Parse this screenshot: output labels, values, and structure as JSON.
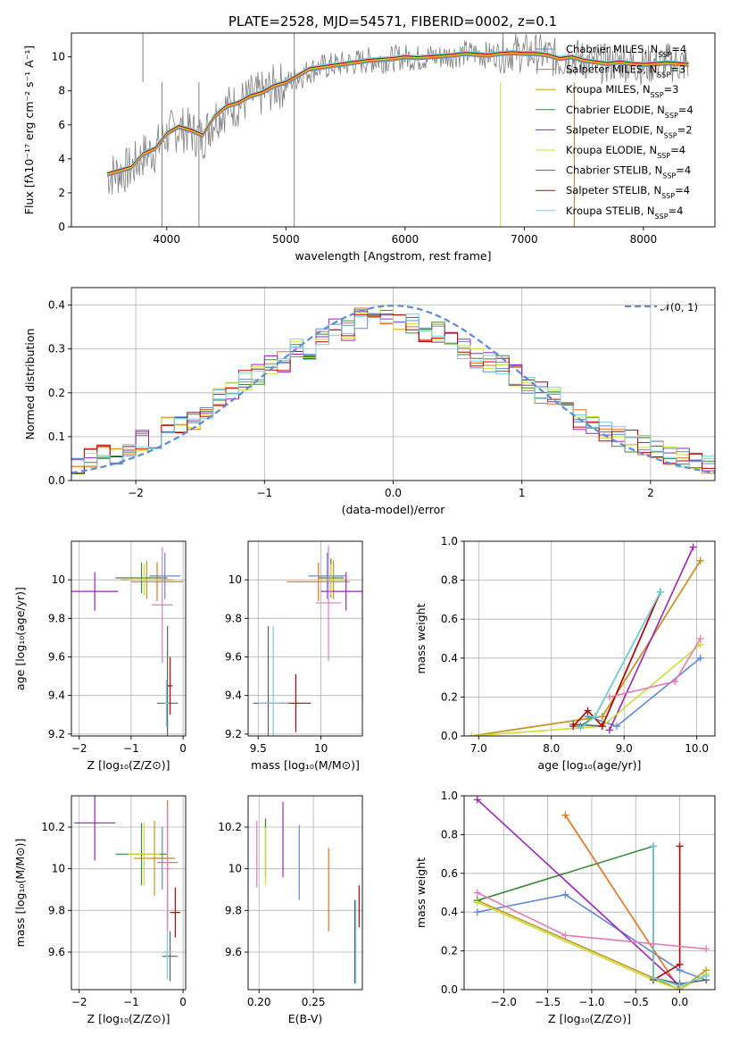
{
  "title": "PLATE=2528, MJD=54571, FIBERID=0002, z=0.1",
  "series_colors": [
    "#5e8ad8",
    "#e8701a",
    "#c8961e",
    "#3a8a3a",
    "#a020c0",
    "#c8e030",
    "#606060",
    "#c00000",
    "#70d0e0",
    "#e878b8"
  ],
  "chart_data": [
    {
      "type": "line",
      "panel": "spectrum",
      "xlabel": "wavelength [Angstrom, rest frame]",
      "ylabel": "Flux [fλ10⁻¹⁷ erg cm⁻² s⁻¹ A⁻¹]",
      "xlim": [
        3200,
        8600
      ],
      "ylim": [
        0,
        11.4
      ],
      "xticks": [
        4000,
        5000,
        6000,
        7000,
        8000
      ],
      "yticks": [
        0,
        2,
        4,
        6,
        8,
        10
      ],
      "grid": false,
      "legend_position": "top-right",
      "observed_spectrum": {
        "x": [
          3500,
          3600,
          3700,
          3800,
          3900,
          4000,
          4100,
          4200,
          4300,
          4400,
          4500,
          4600,
          4700,
          4800,
          4900,
          5000,
          5100,
          5200,
          5300,
          5400,
          5500,
          5600,
          5700,
          5800,
          5900,
          6000,
          6100,
          6200,
          6300,
          6400,
          6500,
          6600,
          6700,
          6800,
          6900,
          7000,
          7100,
          7200,
          7300,
          7400,
          7500,
          7600,
          7700,
          7800,
          7900,
          8000,
          8100,
          8200,
          8300,
          8380
        ],
        "y": [
          3.0,
          3.2,
          3.4,
          4.2,
          4.5,
          5.4,
          5.8,
          5.6,
          5.2,
          6.4,
          7.0,
          7.2,
          7.6,
          7.8,
          8.2,
          8.4,
          8.8,
          9.2,
          9.4,
          9.5,
          9.6,
          9.7,
          9.8,
          9.8,
          9.9,
          10.0,
          9.9,
          10.0,
          10.0,
          10.1,
          10.2,
          10.2,
          10.1,
          10.2,
          10.3,
          10.2,
          10.2,
          10.1,
          9.8,
          10.0,
          9.8,
          9.6,
          9.6,
          9.7,
          9.6,
          9.5,
          9.6,
          9.7,
          9.6,
          9.6
        ]
      },
      "model_spectrum": {
        "x": [
          3500,
          3600,
          3700,
          3800,
          3900,
          4000,
          4100,
          4200,
          4300,
          4400,
          4500,
          4600,
          4700,
          4800,
          4900,
          5000,
          5100,
          5200,
          5300,
          5400,
          5500,
          5600,
          5700,
          5800,
          5900,
          6000,
          6100,
          6200,
          6300,
          6400,
          6500,
          6600,
          6700,
          6800,
          6900,
          7000,
          7100,
          7200,
          7300,
          7400,
          7500,
          7600,
          7700,
          7800,
          7900,
          8000,
          8100,
          8200,
          8300,
          8380
        ],
        "y": [
          3.1,
          3.3,
          3.5,
          4.3,
          4.6,
          5.5,
          5.9,
          5.7,
          5.4,
          6.5,
          7.1,
          7.3,
          7.7,
          7.9,
          8.3,
          8.5,
          8.9,
          9.3,
          9.4,
          9.5,
          9.6,
          9.7,
          9.8,
          9.85,
          9.9,
          10.0,
          9.95,
          10.0,
          10.05,
          10.1,
          10.2,
          10.15,
          10.1,
          10.2,
          10.25,
          10.2,
          10.2,
          10.1,
          9.9,
          10.0,
          9.8,
          9.7,
          9.6,
          9.7,
          9.6,
          9.55,
          9.6,
          9.65,
          9.6,
          9.55
        ]
      },
      "legend": [
        "Chabrier MILES, N_SSP=4",
        "Salpeter MILES, N_SSP=3",
        "Kroupa MILES, N_SSP=3",
        "Chabrier ELODIE, N_SSP=4",
        "Salpeter ELODIE, N_SSP=2",
        "Kroupa ELODIE, N_SSP=4",
        "Chabrier STELIB, N_SSP=4",
        "Salpeter STELIB, N_SSP=4",
        "Kroupa STELIB, N_SSP=4"
      ]
    },
    {
      "type": "line",
      "panel": "residuals",
      "xlabel": "(data-model)/error",
      "ylabel": "Normed distribution",
      "xlim": [
        -2.5,
        2.5
      ],
      "ylim": [
        0,
        0.44
      ],
      "xticks": [
        -2,
        -1,
        0,
        1,
        2
      ],
      "yticks": [
        0.0,
        0.1,
        0.2,
        0.3,
        0.4
      ],
      "grid": true,
      "legend": [
        "𝒩(0, 1)"
      ],
      "legend_position": "top-right",
      "hist_bins": [
        -2.5,
        -2.4,
        -2.3,
        -2.2,
        -2.1,
        -2.0,
        -1.9,
        -1.8,
        -1.7,
        -1.6,
        -1.5,
        -1.4,
        -1.3,
        -1.2,
        -1.1,
        -1.0,
        -0.9,
        -0.8,
        -0.7,
        -0.6,
        -0.5,
        -0.4,
        -0.3,
        -0.2,
        -0.1,
        0.0,
        0.1,
        0.2,
        0.3,
        0.4,
        0.5,
        0.6,
        0.7,
        0.8,
        0.9,
        1.0,
        1.1,
        1.2,
        1.3,
        1.4,
        1.5,
        1.6,
        1.7,
        1.8,
        1.9,
        2.0,
        2.1,
        2.2,
        2.3,
        2.4,
        2.5
      ],
      "hist_values": [
        0.04,
        0.05,
        0.06,
        0.06,
        0.07,
        0.09,
        0.09,
        0.12,
        0.13,
        0.14,
        0.16,
        0.19,
        0.2,
        0.23,
        0.24,
        0.26,
        0.27,
        0.3,
        0.3,
        0.33,
        0.35,
        0.34,
        0.37,
        0.39,
        0.38,
        0.36,
        0.36,
        0.34,
        0.34,
        0.32,
        0.3,
        0.28,
        0.27,
        0.26,
        0.24,
        0.22,
        0.2,
        0.19,
        0.16,
        0.14,
        0.13,
        0.11,
        0.1,
        0.09,
        0.08,
        0.07,
        0.06,
        0.05,
        0.04,
        0.04
      ]
    },
    {
      "type": "scatter",
      "panel": "age-vs-Z",
      "xlabel": "Z [log₁₀(Z/Z⊙)]",
      "ylabel": "age  [log₁₀(age/yr)]",
      "xlim": [
        -2.15,
        0.05
      ],
      "ylim": [
        9.19,
        10.2
      ],
      "xticks": [
        -2,
        -1,
        0
      ],
      "yticks": [
        9.2,
        9.4,
        9.6,
        9.8,
        10.0
      ],
      "grid": true,
      "points": [
        {
          "x": -0.35,
          "y": 10.02,
          "xerr": 0.3,
          "yerr": 0.12
        },
        {
          "x": -0.5,
          "y": 9.99,
          "xerr": 0.5,
          "yerr": 0.1
        },
        {
          "x": -0.7,
          "y": 10.0,
          "xerr": 0.5,
          "yerr": 0.1
        },
        {
          "x": -0.8,
          "y": 10.01,
          "xerr": 0.5,
          "yerr": 0.08
        },
        {
          "x": -1.7,
          "y": 9.94,
          "xerr": 0.45,
          "yerr": 0.1
        },
        {
          "x": -0.75,
          "y": 10.0,
          "xerr": 0.3,
          "yerr": 0.08
        },
        {
          "x": -0.3,
          "y": 9.36,
          "xerr": 0.2,
          "yerr": 0.4
        },
        {
          "x": -0.25,
          "y": 9.45,
          "xerr": 0.05,
          "yerr": 0.15
        },
        {
          "x": -0.32,
          "y": 9.36,
          "xerr": 0.05,
          "yerr": 0.12
        },
        {
          "x": -0.4,
          "y": 9.87,
          "xerr": 0.2,
          "yerr": 0.3
        }
      ]
    },
    {
      "type": "scatter",
      "panel": "age-vs-mass",
      "xlabel": "mass [log₁₀(M/M⊙)]",
      "ylabel": "",
      "xlim": [
        9.42,
        10.33
      ],
      "ylim": [
        9.19,
        10.2
      ],
      "xticks": [
        9.5,
        10.0
      ],
      "yticks": [
        9.2,
        9.4,
        9.6,
        9.8,
        10.0
      ],
      "grid": true,
      "points": [
        {
          "x": 10.05,
          "y": 10.02,
          "xerr": 0.15,
          "yerr": 0.12
        },
        {
          "x": 9.98,
          "y": 9.99,
          "xerr": 0.25,
          "yerr": 0.1
        },
        {
          "x": 10.1,
          "y": 10.0,
          "xerr": 0.1,
          "yerr": 0.1
        },
        {
          "x": 10.08,
          "y": 10.01,
          "xerr": 0.1,
          "yerr": 0.1
        },
        {
          "x": 10.2,
          "y": 9.94,
          "xerr": 0.2,
          "yerr": 0.1
        },
        {
          "x": 10.08,
          "y": 10.0,
          "xerr": 0.1,
          "yerr": 0.08
        },
        {
          "x": 9.58,
          "y": 9.36,
          "xerr": 0.12,
          "yerr": 0.4
        },
        {
          "x": 9.8,
          "y": 9.36,
          "xerr": 0.12,
          "yerr": 0.15
        },
        {
          "x": 9.62,
          "y": 9.36,
          "xerr": 0.12,
          "yerr": 0.4
        },
        {
          "x": 10.06,
          "y": 9.88,
          "xerr": 0.1,
          "yerr": 0.3
        }
      ]
    },
    {
      "type": "line",
      "panel": "mass-weight-vs-age",
      "xlabel": "age  [log₁₀(age/yr)]",
      "ylabel": "mass weight",
      "xlim": [
        6.8,
        10.25
      ],
      "ylim": [
        0,
        1.0
      ],
      "xticks": [
        7,
        8,
        9,
        10
      ],
      "yticks": [
        0.0,
        0.2,
        0.4,
        0.6,
        0.8,
        1.0
      ],
      "grid": true,
      "series": [
        {
          "x": [
            8.5,
            8.9,
            10.05
          ],
          "y": [
            0.1,
            0.05,
            0.4
          ]
        },
        {
          "x": [
            6.9,
            8.7,
            10.05
          ],
          "y": [
            0.0,
            0.1,
            0.9
          ]
        },
        {
          "x": [
            6.9,
            8.7,
            10.05
          ],
          "y": [
            0.0,
            0.1,
            0.9
          ]
        },
        {
          "x": [
            8.4,
            8.6,
            9.5
          ],
          "y": [
            0.05,
            0.1,
            0.74
          ]
        },
        {
          "x": [
            8.8,
            9.95
          ],
          "y": [
            0.03,
            0.97
          ]
        },
        {
          "x": [
            6.9,
            8.7,
            10.05
          ],
          "y": [
            0.0,
            0.05,
            0.47
          ]
        },
        {
          "x": [
            8.3,
            8.7,
            9.5
          ],
          "y": [
            0.06,
            0.05,
            0.74
          ]
        },
        {
          "x": [
            8.3,
            8.5,
            8.7,
            9.5
          ],
          "y": [
            0.05,
            0.13,
            0.05,
            0.74
          ]
        },
        {
          "x": [
            8.4,
            8.6,
            9.5
          ],
          "y": [
            0.04,
            0.1,
            0.74
          ]
        },
        {
          "x": [
            8.8,
            9.7,
            10.05
          ],
          "y": [
            0.2,
            0.28,
            0.5
          ]
        }
      ]
    },
    {
      "type": "scatter",
      "panel": "mass-vs-Z",
      "xlabel": "Z [log₁₀(Z/Z⊙)]",
      "ylabel": "mass [log₁₀(M/M⊙)]",
      "xlim": [
        -2.15,
        0.05
      ],
      "ylim": [
        9.42,
        10.35
      ],
      "xticks": [
        -2,
        -1,
        0
      ],
      "yticks": [
        9.6,
        9.8,
        10.0,
        10.2
      ],
      "grid": true,
      "points": [
        {
          "x": -0.4,
          "y": 10.05,
          "xerr": 0.2,
          "yerr": 0.15
        },
        {
          "x": -0.3,
          "y": 10.03,
          "xerr": 0.2,
          "yerr": 0.3
        },
        {
          "x": -0.55,
          "y": 10.05,
          "xerr": 0.4,
          "yerr": 0.18
        },
        {
          "x": -0.8,
          "y": 10.07,
          "xerr": 0.5,
          "yerr": 0.15
        },
        {
          "x": -1.7,
          "y": 10.22,
          "xerr": 0.4,
          "yerr": 0.18
        },
        {
          "x": -0.75,
          "y": 10.07,
          "xerr": 0.3,
          "yerr": 0.15
        },
        {
          "x": -0.25,
          "y": 9.58,
          "xerr": 0.15,
          "yerr": 0.12
        },
        {
          "x": -0.15,
          "y": 9.79,
          "xerr": 0.1,
          "yerr": 0.12
        },
        {
          "x": -0.3,
          "y": 9.6,
          "xerr": 0.1,
          "yerr": 0.13
        },
        {
          "x": -0.3,
          "y": 10.0,
          "xerr": 0.05,
          "yerr": 0.3
        }
      ]
    },
    {
      "type": "scatter",
      "panel": "mass-vs-EBV",
      "xlabel": "E(B-V)",
      "ylabel": "",
      "xlim": [
        0.19,
        0.295
      ],
      "ylim": [
        9.42,
        10.35
      ],
      "xticks": [
        0.2,
        0.25
      ],
      "yticks": [
        9.6,
        9.8,
        10.0,
        10.2
      ],
      "grid": true,
      "points": [
        {
          "x": 0.237,
          "y": 10.03,
          "yerr": 0.18
        },
        {
          "x": 0.264,
          "y": 9.9,
          "yerr": 0.2
        },
        {
          "x": 0.206,
          "y": 10.1,
          "yerr": 0.14
        },
        {
          "x": 0.206,
          "y": 10.1,
          "yerr": 0.14
        },
        {
          "x": 0.222,
          "y": 10.14,
          "yerr": 0.18
        },
        {
          "x": 0.206,
          "y": 10.06,
          "yerr": 0.14
        },
        {
          "x": 0.288,
          "y": 9.65,
          "yerr": 0.2
        },
        {
          "x": 0.292,
          "y": 9.82,
          "yerr": 0.1
        },
        {
          "x": 0.289,
          "y": 9.65,
          "yerr": 0.2
        },
        {
          "x": 0.198,
          "y": 10.07,
          "yerr": 0.16
        }
      ]
    },
    {
      "type": "line",
      "panel": "mass-weight-vs-Z",
      "xlabel": "Z [log₁₀(Z/Z⊙)]",
      "ylabel": "mass weight",
      "xlim": [
        -2.45,
        0.4
      ],
      "ylim": [
        0,
        1.0
      ],
      "xticks": [
        -2.0,
        -1.5,
        -1.0,
        -0.5,
        0.0
      ],
      "yticks": [
        0.0,
        0.2,
        0.4,
        0.6,
        0.8,
        1.0
      ],
      "grid": true,
      "series": [
        {
          "x": [
            -2.3,
            -1.3,
            0.0,
            0.3
          ],
          "y": [
            0.4,
            0.49,
            0.1,
            0.05
          ]
        },
        {
          "x": [
            -1.3,
            0.0,
            0.3
          ],
          "y": [
            0.9,
            0.0,
            0.08
          ]
        },
        {
          "x": [
            -2.3,
            0.0,
            0.3
          ],
          "y": [
            0.46,
            0.0,
            0.1
          ]
        },
        {
          "x": [
            -2.3,
            -0.3,
            -0.3,
            0.0
          ],
          "y": [
            0.46,
            0.74,
            0.06,
            0.03
          ]
        },
        {
          "x": [
            -2.3,
            0.0
          ],
          "y": [
            0.98,
            0.02
          ]
        },
        {
          "x": [
            -2.3,
            -0.3,
            0.0,
            0.3
          ],
          "y": [
            0.45,
            0.05,
            0.0,
            0.08
          ]
        },
        {
          "x": [
            -0.3,
            -0.3,
            0.0,
            0.3
          ],
          "y": [
            0.74,
            0.06,
            0.03,
            0.05
          ]
        },
        {
          "x": [
            -0.3,
            0.0,
            0.0
          ],
          "y": [
            0.05,
            0.13,
            0.74
          ]
        },
        {
          "x": [
            -0.3,
            -0.3,
            0.0,
            0.3
          ],
          "y": [
            0.74,
            0.06,
            0.02,
            0.07
          ]
        },
        {
          "x": [
            -2.3,
            -1.3,
            0.3
          ],
          "y": [
            0.5,
            0.28,
            0.21
          ]
        }
      ]
    }
  ]
}
